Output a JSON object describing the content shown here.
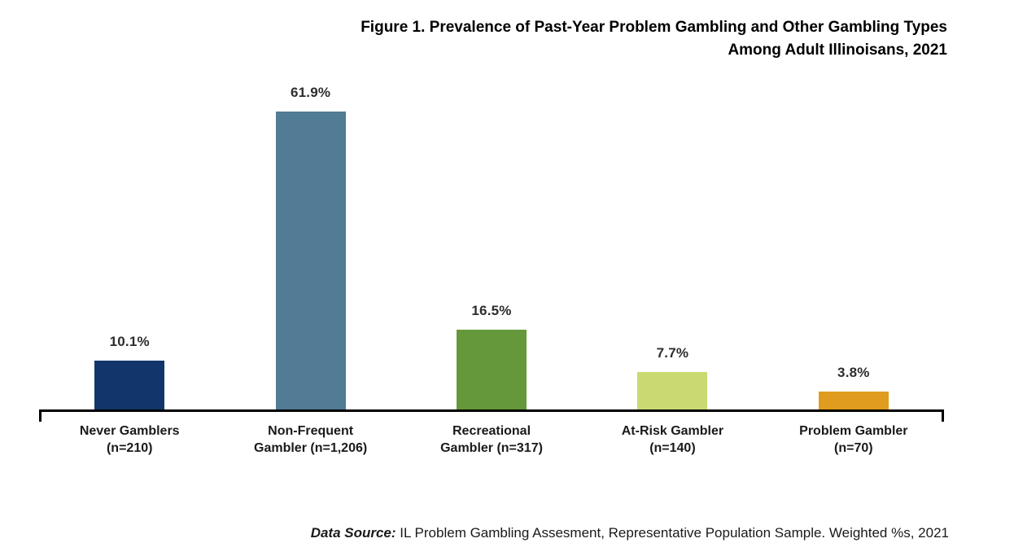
{
  "header": {
    "title_line1": "Figure 1. Prevalence of Past-Year Problem Gambling and Other Gambling Types",
    "title_line2": "Among Adult Illinoisans, 2021"
  },
  "chart_data": {
    "type": "bar",
    "title": "Figure 1. Prevalence of Past-Year Problem Gambling and Other Gambling Types Among Adult Illinoisans, 2021",
    "categories": [
      "Never Gamblers\n(n=210)",
      "Non-Frequent\nGambler (n=1,206)",
      "Recreational\nGambler (n=317)",
      "At-Risk Gambler\n(n=140)",
      "Problem Gambler\n(n=70)"
    ],
    "values": [
      10.1,
      61.9,
      16.5,
      7.7,
      3.8
    ],
    "value_labels": [
      "10.1%",
      "61.9%",
      "16.5%",
      "7.7%",
      "3.8%"
    ],
    "bar_colors": [
      "#12366B",
      "#527B95",
      "#65983A",
      "#CBD973",
      "#E09C1E"
    ],
    "xlabel": "",
    "ylabel": "",
    "ylim": [
      0,
      62
    ],
    "grid": false,
    "legend": false,
    "axis_color": "#000000"
  },
  "footer": {
    "label": "Data Source:",
    "text": " IL Problem Gambling Assesment, Representative Population Sample. Weighted %s, 2021"
  }
}
